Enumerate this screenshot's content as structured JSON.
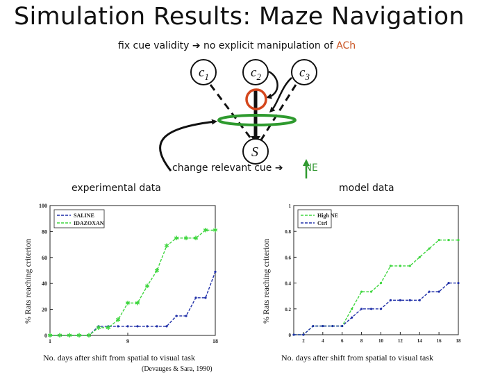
{
  "title": "Simulation Results: Maze Navigation",
  "subtitle": {
    "text": "fix cue validity",
    "arrow": "➔",
    "rest": "no explicit manipulation of",
    "ach": "ACh"
  },
  "diagram": {
    "nodes": [
      "c1",
      "c2",
      "c3",
      "S"
    ],
    "change_text": "change relevant cue",
    "arrow": "➔",
    "ne": "NE",
    "colors": {
      "ring": "#d4461c",
      "ellipse": "#2e9a2e",
      "arrow_up": "#2e9a2e",
      "node_stroke": "#111111"
    }
  },
  "labels": {
    "experimental": "experimental data",
    "model": "model data"
  },
  "chart_data": [
    {
      "type": "line",
      "title": "",
      "xlabel": "No. days after shift from spatial to visual task",
      "ylabel": "% Rats reaching criterion",
      "citation": "(Devauges & Sara, 1990)",
      "xlim": [
        1,
        18
      ],
      "ylim": [
        0,
        100
      ],
      "xticks": [
        "1",
        "9",
        "18"
      ],
      "yticks": [
        "0",
        "20",
        "40",
        "60",
        "80",
        "100"
      ],
      "legend": "top-left",
      "series": [
        {
          "name": "SALINE",
          "color": "#1f2fa8",
          "x": [
            1,
            2,
            3,
            4,
            5,
            6,
            7,
            8,
            9,
            10,
            11,
            12,
            13,
            14,
            15,
            16,
            17,
            18
          ],
          "values": [
            0,
            0,
            0,
            0,
            0,
            7,
            7,
            7,
            7,
            7,
            7,
            7,
            7,
            15,
            15,
            29,
            29,
            49
          ]
        },
        {
          "name": "IDAZOXAN",
          "color": "#3fd63f",
          "x": [
            1,
            2,
            3,
            4,
            5,
            6,
            7,
            8,
            9,
            10,
            11,
            12,
            13,
            14,
            15,
            16,
            17,
            18
          ],
          "values": [
            0,
            0,
            0,
            0,
            0,
            6,
            6,
            12,
            25,
            25,
            38,
            50,
            69,
            75,
            75,
            75,
            81,
            81
          ]
        }
      ]
    },
    {
      "type": "line",
      "title": "",
      "xlabel": "No. days after shift from spatial to visual task",
      "ylabel": "% Rats reaching criterion",
      "xlim": [
        1,
        18
      ],
      "ylim": [
        0,
        1
      ],
      "xticks": [
        "2",
        "4",
        "6",
        "8",
        "10",
        "12",
        "14",
        "16",
        "18"
      ],
      "yticks": [
        "0",
        "0.2",
        "0.4",
        "0.6",
        "0.8",
        "1"
      ],
      "legend": "top-left",
      "series": [
        {
          "name": "High NE",
          "color": "#3fd63f",
          "x": [
            1,
            2,
            3,
            4,
            5,
            6,
            7,
            8,
            9,
            10,
            11,
            12,
            13,
            14,
            15,
            16,
            17,
            18
          ],
          "values": [
            0,
            0,
            0.067,
            0.067,
            0.067,
            0.067,
            0.2,
            0.333,
            0.333,
            0.4,
            0.533,
            0.533,
            0.533,
            0.6,
            0.667,
            0.733,
            0.733,
            0.733
          ]
        },
        {
          "name": "Ctrl",
          "color": "#1f2fa8",
          "x": [
            1,
            2,
            3,
            4,
            5,
            6,
            7,
            8,
            9,
            10,
            11,
            12,
            13,
            14,
            15,
            16,
            17,
            18
          ],
          "values": [
            0,
            0,
            0.067,
            0.067,
            0.067,
            0.067,
            0.133,
            0.2,
            0.2,
            0.2,
            0.267,
            0.267,
            0.267,
            0.267,
            0.333,
            0.333,
            0.4,
            0.4
          ]
        }
      ]
    }
  ]
}
